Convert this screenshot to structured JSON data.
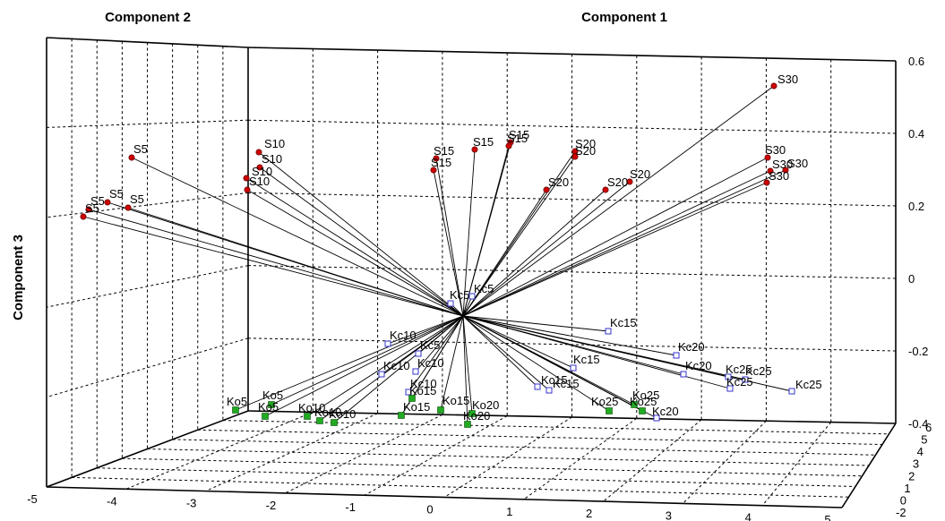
{
  "chart_data": {
    "type": "scatter",
    "title": "",
    "axis_titles": {
      "component_1": "Component 1",
      "component_2": "Component 2",
      "component_3": "Component 3"
    },
    "axes": {
      "component_1": {
        "range": [
          -5,
          5
        ],
        "ticks": [
          "-5",
          "-4",
          "-3",
          "-2",
          "-1",
          "0",
          "1",
          "2",
          "3",
          "4",
          "5"
        ]
      },
      "component_2": {
        "ticks": [
          "-2",
          "0",
          "1",
          "2",
          "3",
          "4",
          "5",
          "6"
        ]
      },
      "component_3": {
        "range": [
          -0.4,
          0.6
        ],
        "ticks": [
          "0.6",
          "0.4",
          "0.2",
          "0",
          "-0.2",
          "-0.4"
        ]
      }
    },
    "grid": true,
    "colors": {
      "S": "#cc0000",
      "Kc": "#3333cc",
      "Ko": "#22aa22"
    },
    "series": [
      {
        "marker": "filled-circle",
        "color": "#cc0000",
        "points": [
          {
            "label": "S5"
          },
          {
            "label": "S5"
          },
          {
            "label": "S5"
          },
          {
            "label": "S5"
          },
          {
            "label": "S5"
          },
          {
            "label": "S10"
          },
          {
            "label": "S10"
          },
          {
            "label": "S10"
          },
          {
            "label": "S10"
          },
          {
            "label": "S15"
          },
          {
            "label": "S15"
          },
          {
            "label": "S15"
          },
          {
            "label": "S15"
          },
          {
            "label": "S15"
          },
          {
            "label": "S20"
          },
          {
            "label": "S20"
          },
          {
            "label": "S20"
          },
          {
            "label": "S20"
          },
          {
            "label": "S20"
          },
          {
            "label": "S30"
          },
          {
            "label": "S30"
          },
          {
            "label": "S30"
          },
          {
            "label": "S30"
          },
          {
            "label": "S30"
          }
        ]
      },
      {
        "marker": "open-square",
        "color": "#3333cc",
        "points": [
          {
            "label": "Kc5"
          },
          {
            "label": "Kc5"
          },
          {
            "label": "Kc5"
          },
          {
            "label": "Kc10"
          },
          {
            "label": "Kc10"
          },
          {
            "label": "Kc10"
          },
          {
            "label": "Kc10"
          },
          {
            "label": "Kc15"
          },
          {
            "label": "Kc15"
          },
          {
            "label": "Kc15"
          },
          {
            "label": "Kc15"
          },
          {
            "label": "Kc20"
          },
          {
            "label": "Kc20"
          },
          {
            "label": "Kc20"
          },
          {
            "label": "Kc25"
          },
          {
            "label": "Kc25"
          },
          {
            "label": "Kc25"
          },
          {
            "label": "Kc25"
          }
        ]
      },
      {
        "marker": "filled-square",
        "color": "#22aa22",
        "points": [
          {
            "label": "Ko5"
          },
          {
            "label": "Ko5"
          },
          {
            "label": "Ko5"
          },
          {
            "label": "Ko10"
          },
          {
            "label": "Ko10"
          },
          {
            "label": "Ko10"
          },
          {
            "label": "Ko15"
          },
          {
            "label": "Ko15"
          },
          {
            "label": "Ko15"
          },
          {
            "label": "Ko20"
          },
          {
            "label": "Ko20"
          },
          {
            "label": "Ko25"
          },
          {
            "label": "Ko25"
          },
          {
            "label": "Ko25"
          }
        ]
      }
    ]
  }
}
